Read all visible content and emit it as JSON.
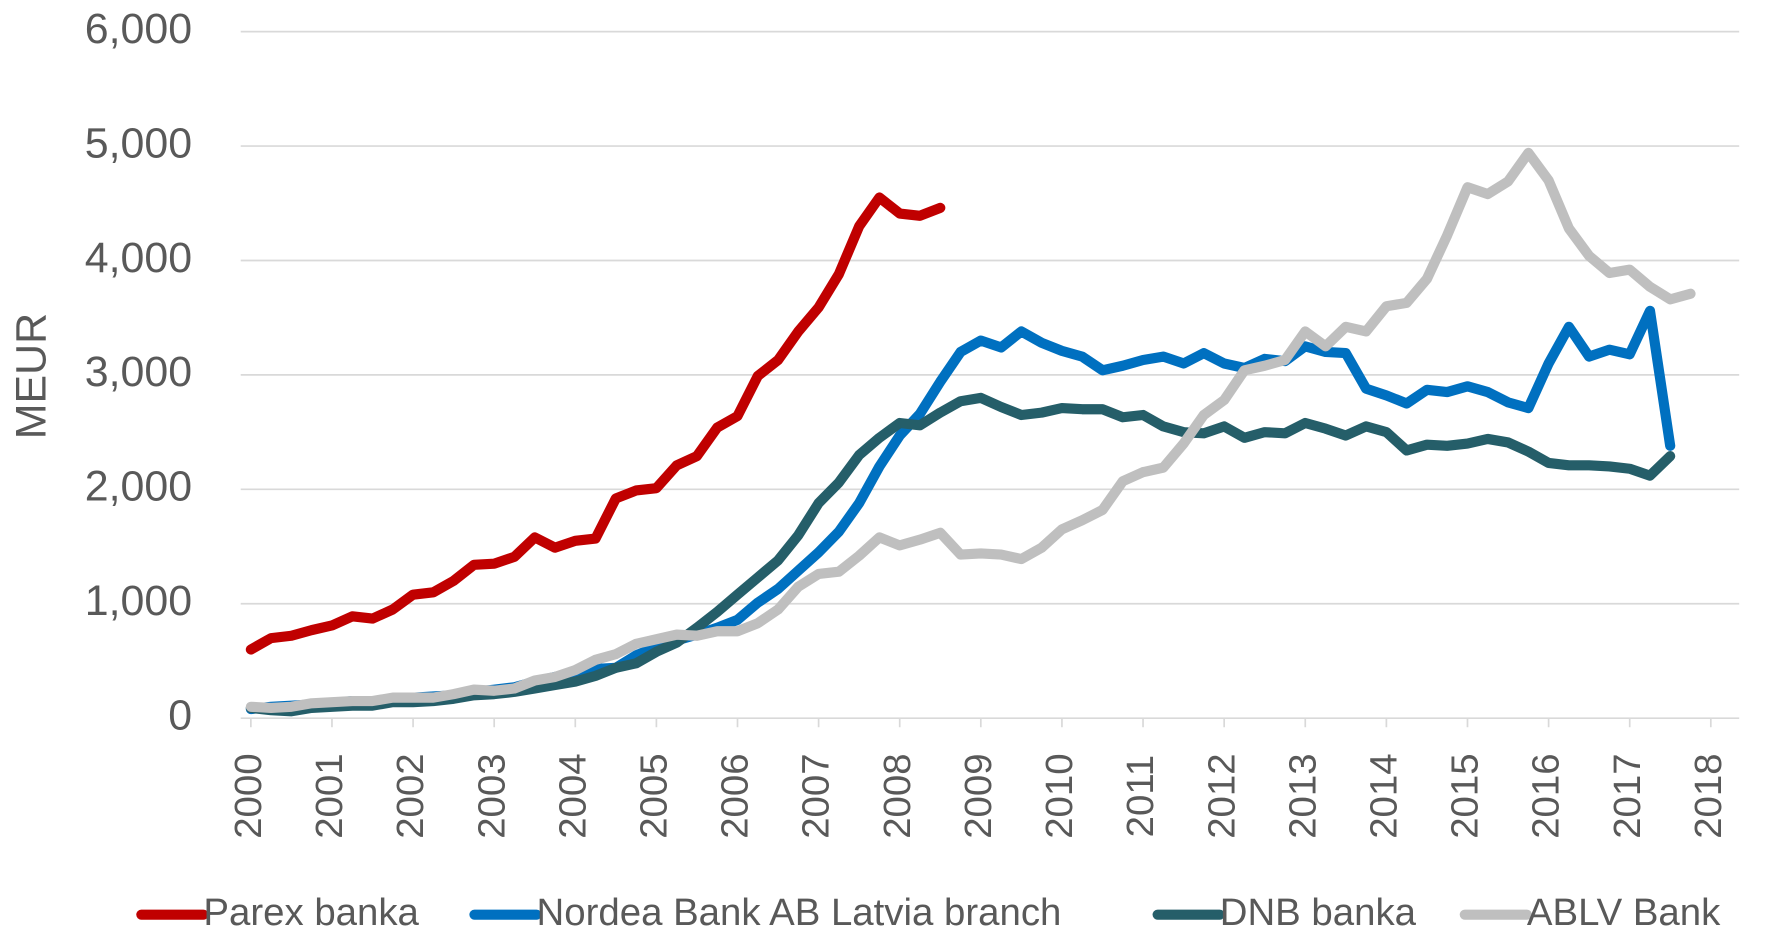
{
  "chart_data": {
    "type": "line",
    "y_label": "MEUR",
    "x": [
      2000,
      2000.25,
      2000.5,
      2000.75,
      2001,
      2001.25,
      2001.5,
      2001.75,
      2002,
      2002.25,
      2002.5,
      2002.75,
      2003,
      2003.25,
      2003.5,
      2003.75,
      2004,
      2004.25,
      2004.5,
      2004.75,
      2005,
      2005.25,
      2005.5,
      2005.75,
      2006,
      2006.25,
      2006.5,
      2006.75,
      2007,
      2007.25,
      2007.5,
      2007.75,
      2008,
      2008.25,
      2008.5,
      2008.75,
      2009,
      2009.25,
      2009.5,
      2009.75,
      2010,
      2010.25,
      2010.5,
      2010.75,
      2011,
      2011.25,
      2011.5,
      2011.75,
      2012,
      2012.25,
      2012.5,
      2012.75,
      2013,
      2013.25,
      2013.5,
      2013.75,
      2014,
      2014.25,
      2014.5,
      2014.75,
      2015,
      2015.25,
      2015.5,
      2015.75,
      2016,
      2016.25,
      2016.5,
      2016.75,
      2017,
      2017.25,
      2017.5,
      2017.75
    ],
    "series": [
      {
        "name": "Parex banka",
        "color": "#c00000",
        "values": [
          600,
          700,
          720,
          770,
          810,
          890,
          870,
          950,
          1080,
          1100,
          1200,
          1340,
          1350,
          1410,
          1580,
          1490,
          1550,
          1570,
          1920,
          1990,
          2010,
          2210,
          2290,
          2540,
          2640,
          2990,
          3130,
          3380,
          3590,
          3880,
          4300,
          4550,
          4410,
          4390,
          4460,
          null,
          null,
          null,
          null,
          null,
          null,
          null,
          null,
          null,
          null,
          null,
          null,
          null,
          null,
          null,
          null,
          null,
          null,
          null,
          null,
          null,
          null,
          null,
          null,
          null,
          null,
          null,
          null,
          null,
          null,
          null,
          null,
          null,
          null,
          null,
          null,
          null
        ]
      },
      {
        "name": "Nordea Bank AB Latvia branch",
        "color": "#0070c0",
        "values": [
          80,
          100,
          110,
          120,
          130,
          150,
          140,
          170,
          180,
          190,
          200,
          230,
          250,
          270,
          320,
          360,
          400,
          430,
          440,
          550,
          620,
          680,
          730,
          790,
          860,
          1010,
          1130,
          1290,
          1450,
          1630,
          1880,
          2200,
          2470,
          2660,
          2940,
          3200,
          3300,
          3240,
          3380,
          3280,
          3210,
          3160,
          3040,
          3080,
          3130,
          3160,
          3100,
          3190,
          3100,
          3060,
          3140,
          3120,
          3250,
          3200,
          3190,
          2880,
          2820,
          2750,
          2870,
          2850,
          2900,
          2850,
          2760,
          2710,
          3100,
          3420,
          3160,
          3220,
          3180,
          3560,
          2380,
          null
        ]
      },
      {
        "name": "DNB banka",
        "color": "#255e69",
        "values": [
          90,
          70,
          60,
          90,
          100,
          110,
          110,
          140,
          140,
          150,
          170,
          200,
          210,
          230,
          260,
          290,
          320,
          370,
          440,
          480,
          580,
          660,
          790,
          930,
          1080,
          1230,
          1380,
          1600,
          1880,
          2060,
          2300,
          2450,
          2580,
          2560,
          2670,
          2770,
          2800,
          2720,
          2650,
          2670,
          2710,
          2700,
          2700,
          2630,
          2650,
          2550,
          2500,
          2490,
          2550,
          2450,
          2500,
          2490,
          2580,
          2530,
          2470,
          2550,
          2500,
          2340,
          2390,
          2380,
          2400,
          2440,
          2410,
          2330,
          2230,
          2210,
          2210,
          2200,
          2180,
          2120,
          2290,
          null
        ]
      },
      {
        "name": "ABLV Bank",
        "color": "#bfbfbf",
        "values": [
          100,
          90,
          100,
          130,
          140,
          150,
          150,
          180,
          180,
          180,
          210,
          250,
          240,
          260,
          330,
          360,
          420,
          510,
          560,
          650,
          690,
          730,
          720,
          760,
          760,
          830,
          950,
          1150,
          1260,
          1280,
          1420,
          1580,
          1510,
          1560,
          1620,
          1430,
          1440,
          1430,
          1390,
          1490,
          1650,
          1730,
          1820,
          2070,
          2150,
          2190,
          2400,
          2650,
          2780,
          3040,
          3080,
          3130,
          3380,
          3250,
          3420,
          3380,
          3600,
          3630,
          3840,
          4220,
          4640,
          4580,
          4690,
          4940,
          4700,
          4280,
          4040,
          3890,
          3920,
          3770,
          3660,
          3710
        ]
      }
    ],
    "xlim": [
      1999.875,
      2018.35
    ],
    "xticks": [
      2000,
      2001,
      2002,
      2003,
      2004,
      2005,
      2006,
      2007,
      2008,
      2009,
      2010,
      2011,
      2012,
      2013,
      2014,
      2015,
      2016,
      2017,
      2018
    ],
    "ylim": [
      0,
      6000
    ],
    "yticks": [
      0,
      {
        "value": 1000,
        "label": "1,000"
      },
      {
        "value": 2000,
        "label": "2,000"
      },
      {
        "value": 3000,
        "label": "3,000"
      },
      {
        "value": 4000,
        "label": "4,000"
      },
      {
        "value": 5000,
        "label": "5,000"
      },
      {
        "value": 6000,
        "label": "6,000"
      }
    ],
    "grid": true,
    "legend": "bottom"
  }
}
